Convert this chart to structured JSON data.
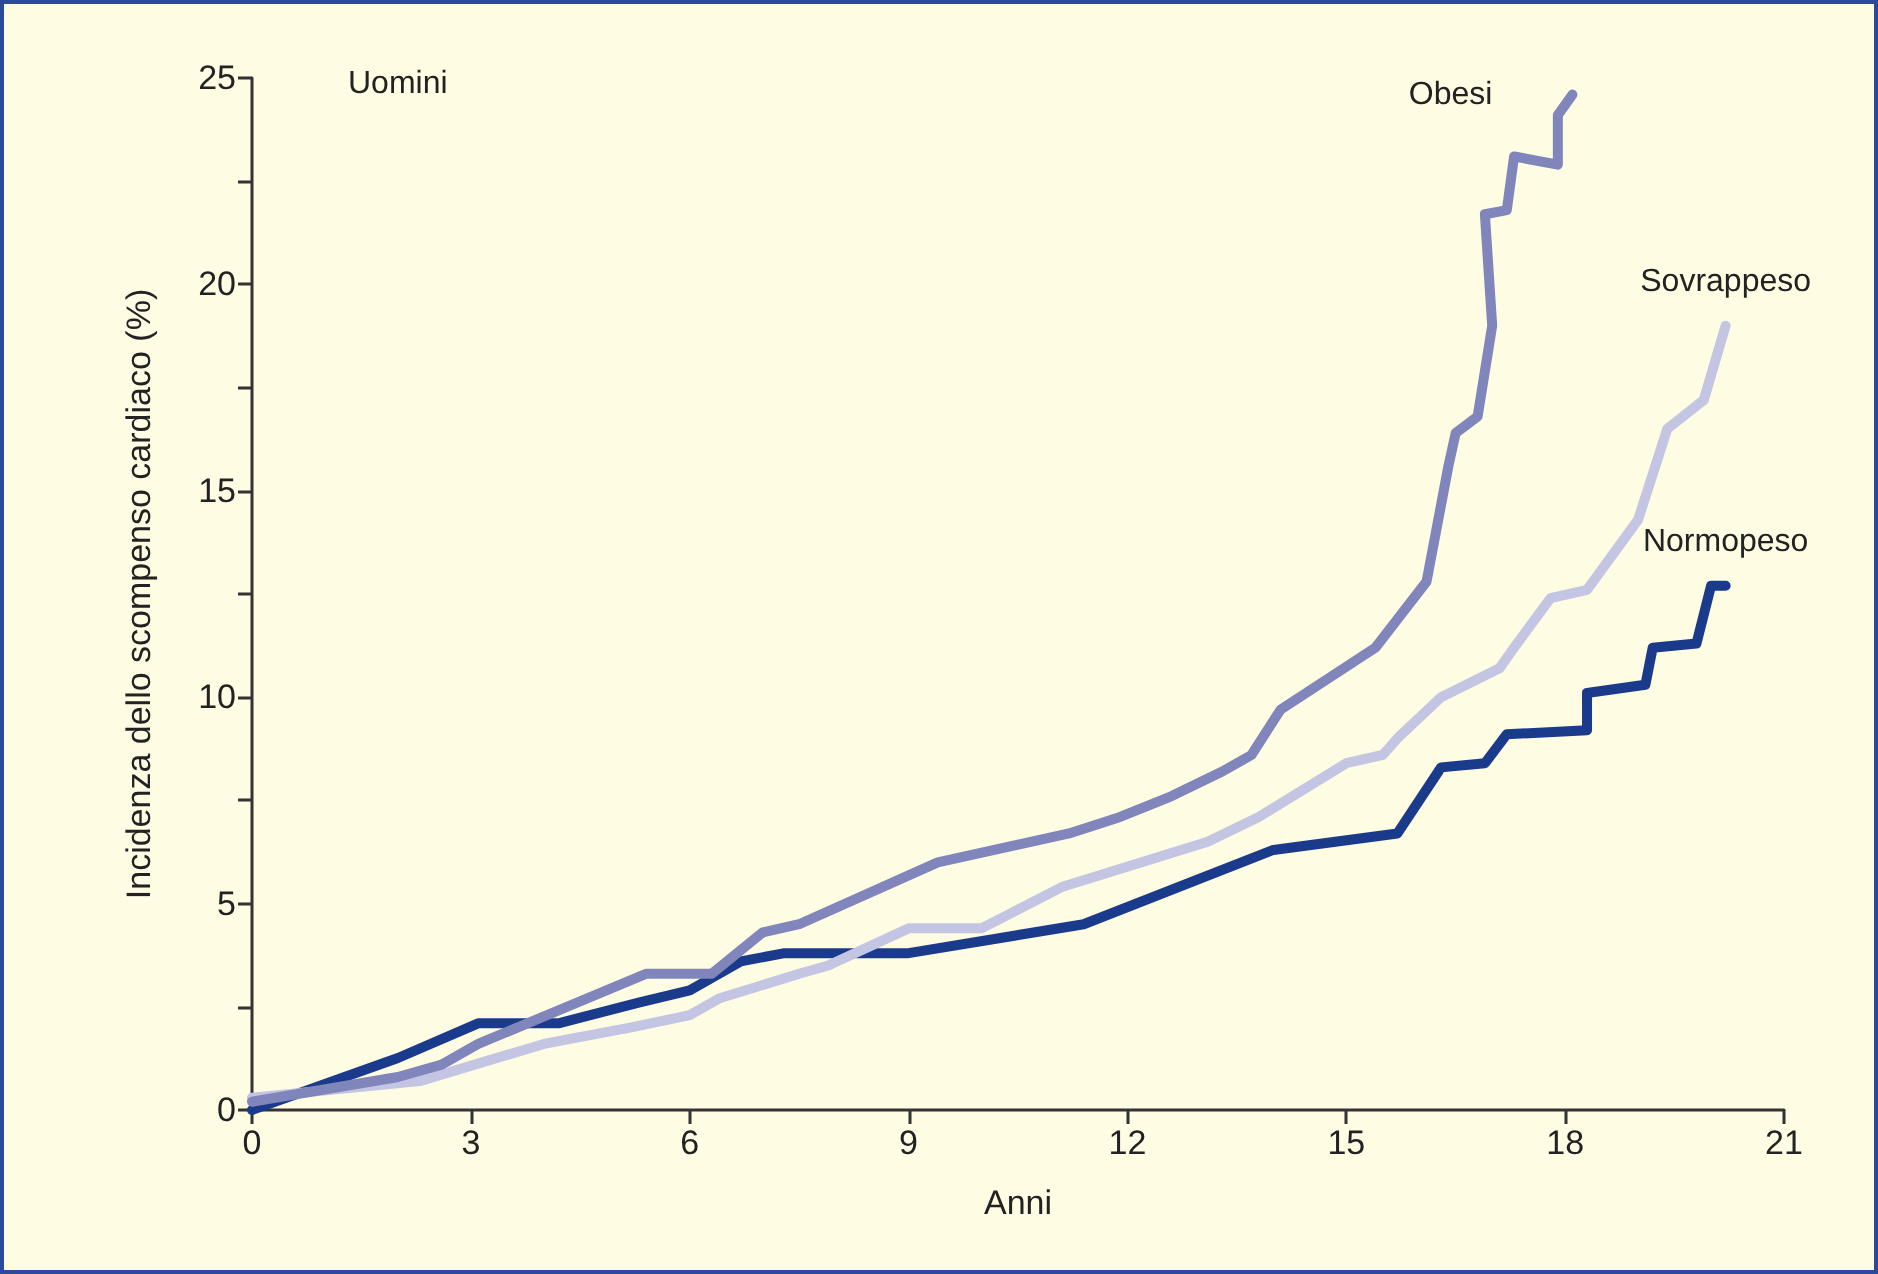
{
  "chart_data": {
    "type": "line",
    "xlabel": "Anni",
    "ylabel": "Incidenza dello scompenso cardiaco (%)",
    "annotations": [
      "Uomini"
    ],
    "xlim": [
      0,
      21
    ],
    "xticks": [
      0,
      3,
      6,
      9,
      12,
      15,
      18,
      21
    ],
    "ylim": [
      0,
      25
    ],
    "yticks": [
      0,
      {
        "value": 2.5,
        "label": null
      },
      5,
      {
        "value": 7.5,
        "label": null
      },
      10,
      {
        "value": 12.5,
        "label": null
      },
      15,
      {
        "value": 17.5,
        "label": null
      },
      20,
      {
        "value": 22.5,
        "label": null
      },
      25
    ],
    "grid": false,
    "legend": false,
    "marker": "none",
    "line_style": "solid",
    "series": [
      {
        "name": "Obesi",
        "color": "#8085bc",
        "x": [
          0,
          2.0,
          2.6,
          3.1,
          5.4,
          6.3,
          7.0,
          7.5,
          9.4,
          11.2,
          11.9,
          12.6,
          13.3,
          13.7,
          14.1,
          15.4,
          16.1,
          16.4,
          16.5,
          16.8,
          17.0,
          16.9,
          17.2,
          17.3,
          17.9,
          17.9,
          18.1
        ],
        "values": [
          0.2,
          0.8,
          1.1,
          1.6,
          3.3,
          3.3,
          4.3,
          4.5,
          6.0,
          6.7,
          7.1,
          7.6,
          8.2,
          8.6,
          9.7,
          11.2,
          12.8,
          15.6,
          16.4,
          16.8,
          19.0,
          21.7,
          21.8,
          23.1,
          22.9,
          24.1,
          24.6
        ]
      },
      {
        "name": "Sovrappeso",
        "color": "#c3c5e3",
        "x": [
          0,
          2.3,
          4.0,
          5.2,
          6.0,
          6.4,
          7.5,
          7.9,
          9.0,
          10.0,
          11.1,
          13.1,
          13.8,
          15.0,
          15.5,
          15.7,
          16.3,
          17.1,
          17.3,
          17.8,
          18.3,
          19.0,
          19.4,
          19.9,
          20.2
        ],
        "values": [
          0.3,
          0.7,
          1.6,
          2.0,
          2.3,
          2.7,
          3.3,
          3.5,
          4.4,
          4.4,
          5.4,
          6.5,
          7.1,
          8.4,
          8.6,
          9.0,
          10.0,
          10.7,
          11.2,
          12.4,
          12.6,
          14.3,
          16.5,
          17.2,
          19.0
        ]
      },
      {
        "name": "Normopeso",
        "color": "#1a3a8c",
        "x": [
          0,
          2.0,
          3.1,
          4.2,
          5.3,
          6.0,
          6.7,
          7.3,
          9.0,
          11.4,
          14.0,
          15.7,
          16.3,
          16.9,
          17.2,
          18.3,
          18.3,
          19.1,
          19.2,
          19.8,
          20.0,
          20.2
        ],
        "values": [
          0,
          1.26,
          2.1,
          2.1,
          2.6,
          2.9,
          3.6,
          3.8,
          3.8,
          4.5,
          6.3,
          6.7,
          8.3,
          8.4,
          9.1,
          9.2,
          10.1,
          10.3,
          11.2,
          11.3,
          12.7,
          12.7
        ]
      }
    ]
  }
}
